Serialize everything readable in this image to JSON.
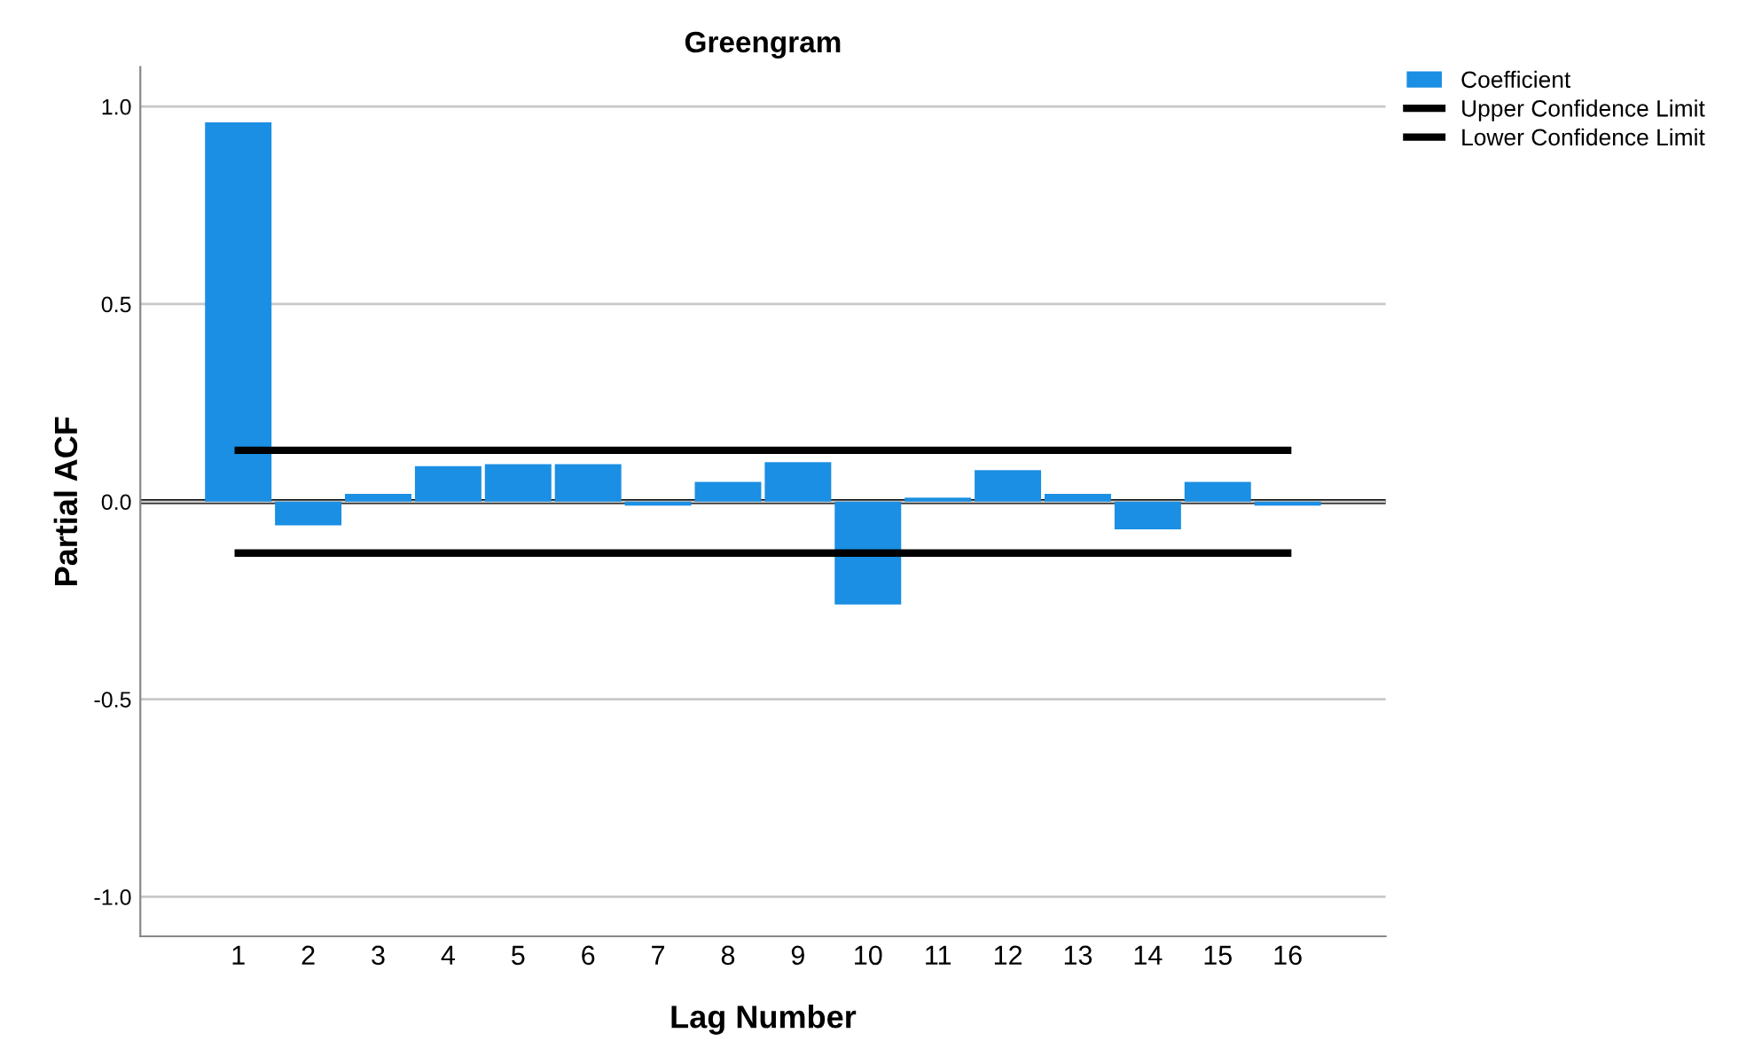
{
  "chart_data": {
    "type": "bar",
    "title": "Greengram",
    "xlabel": "Lag Number",
    "ylabel": "Partial ACF",
    "categories": [
      "1",
      "2",
      "3",
      "4",
      "5",
      "6",
      "7",
      "8",
      "9",
      "10",
      "11",
      "12",
      "13",
      "14",
      "15",
      "16"
    ],
    "series": [
      {
        "name": "Coefficient",
        "color": "#1a8fe3",
        "values": [
          0.96,
          -0.06,
          0.02,
          0.09,
          0.095,
          0.095,
          -0.01,
          0.05,
          0.1,
          -0.26,
          0.01,
          0.08,
          0.02,
          -0.07,
          0.05,
          -0.01
        ]
      },
      {
        "name": "Upper Confidence Limit",
        "type": "line",
        "color": "#000000",
        "values": [
          0.13,
          0.13,
          0.13,
          0.13,
          0.13,
          0.13,
          0.13,
          0.13,
          0.13,
          0.13,
          0.13,
          0.13,
          0.13,
          0.13,
          0.13,
          0.13
        ]
      },
      {
        "name": "Lower Confidence Limit",
        "type": "line",
        "color": "#000000",
        "values": [
          -0.13,
          -0.13,
          -0.13,
          -0.13,
          -0.13,
          -0.13,
          -0.13,
          -0.13,
          -0.13,
          -0.13,
          -0.13,
          -0.13,
          -0.13,
          -0.13,
          -0.13,
          -0.13
        ]
      }
    ],
    "ylim": [
      -1.1,
      1.1
    ],
    "yticks": [
      {
        "value": -1,
        "label": "-1.0"
      },
      {
        "value": -0.5,
        "label": "-0.5"
      },
      {
        "value": 0,
        "label": "0.0"
      },
      {
        "value": 0.5,
        "label": "0.5"
      },
      {
        "value": 1,
        "label": "1.0"
      }
    ],
    "ref_lines": [
      {
        "axis": "y",
        "value": 0,
        "color": "#000000"
      }
    ],
    "grid": "y",
    "legend": "top right"
  }
}
